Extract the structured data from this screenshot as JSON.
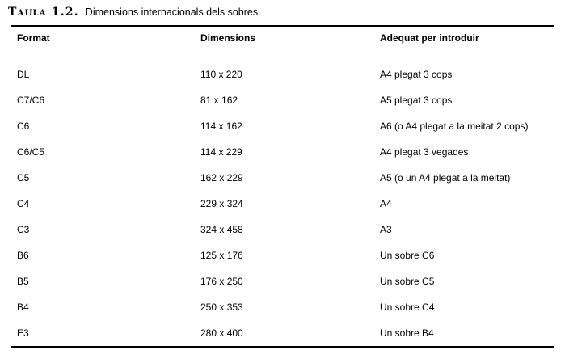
{
  "page": {
    "title_label": "Taula 1.2.",
    "title_text": "Dimensions internacionals dels sobres"
  },
  "table": {
    "headers": [
      "Format",
      "Dimensions",
      "Adequat per introduir"
    ],
    "rows": [
      {
        "format": "DL",
        "dimensions": "110 x 220",
        "fits": "A4 plegat 3 cops"
      },
      {
        "format": "C7/C6",
        "dimensions": "81 x 162",
        "fits": "A5 plegat 3 cops"
      },
      {
        "format": "C6",
        "dimensions": "114 x 162",
        "fits": "A6 (o A4 plegat a la meitat 2 cops)"
      },
      {
        "format": "C6/C5",
        "dimensions": "114 x 229",
        "fits": "A4 plegat 3 vegades"
      },
      {
        "format": "C5",
        "dimensions": "162 x 229",
        "fits": "A5 (o un A4 plegat a la meitat)"
      },
      {
        "format": "C4",
        "dimensions": "229 x 324",
        "fits": "A4"
      },
      {
        "format": "C3",
        "dimensions": "324 x 458",
        "fits": "A3"
      },
      {
        "format": "B6",
        "dimensions": "125 x 176",
        "fits": "Un sobre C6"
      },
      {
        "format": "B5",
        "dimensions": "176 x 250",
        "fits": "Un sobre C5"
      },
      {
        "format": "B4",
        "dimensions": "250 x 353",
        "fits": "Un sobre C4"
      },
      {
        "format": "E3",
        "dimensions": "280 x 400",
        "fits": "Un sobre B4"
      }
    ],
    "colors": {
      "text": "#000000",
      "rule": "#000000",
      "background": "#ffffff"
    }
  }
}
